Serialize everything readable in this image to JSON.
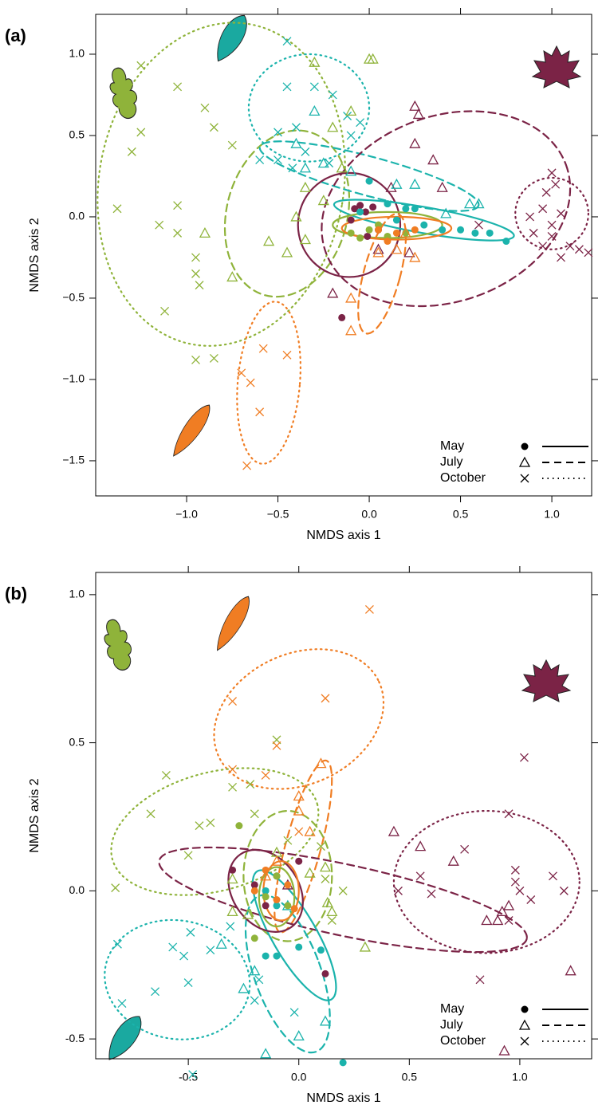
{
  "chart_data": [
    {
      "type": "scatter",
      "panel_label": "(a)",
      "xlabel": "NMDS axis 1",
      "ylabel": "NMDS axis 2",
      "xlim": [
        -1.498,
        1.218
      ],
      "ylim": [
        -1.716,
        1.245
      ],
      "xticks": [
        {
          "value": -1.0,
          "label": "−1.0"
        },
        {
          "value": -0.5,
          "label": "−0.5"
        },
        {
          "value": 0,
          "label": "0.0"
        },
        0.5,
        {
          "value": 1.0,
          "label": "1.0"
        }
      ],
      "yticks": [
        {
          "value": 1.0,
          "label": "1.0"
        },
        0.5,
        {
          "value": 0,
          "label": "0.0"
        },
        {
          "value": -0.5,
          "label": "−0.5"
        },
        {
          "value": -1.0,
          "label": "−1.0"
        },
        {
          "value": -1.5,
          "label": "−1.5"
        }
      ],
      "legend_position": "bottom-right",
      "legend": [
        {
          "label": "May",
          "marker": "circle",
          "dash": "solid"
        },
        {
          "label": "July",
          "marker": "triangle",
          "dash": "dashed"
        },
        {
          "label": "October",
          "marker": "cross",
          "dash": "dotted"
        }
      ],
      "series": [
        {
          "color": "#7b2346",
          "marker": "circle",
          "x": [
            -0.08,
            -0.05,
            -0.02,
            0.02,
            -0.1,
            0.05,
            -0.01,
            -0.15
          ],
          "y": [
            0.05,
            0.07,
            0.03,
            0.06,
            -0.02,
            -0.08,
            -0.12,
            -0.62
          ]
        },
        {
          "color": "#7b2346",
          "marker": "triangle",
          "x": [
            0.25,
            0.27,
            0.35,
            0.25,
            0.4,
            -0.2,
            0.22,
            0.05,
            0.12
          ],
          "y": [
            0.68,
            0.63,
            0.35,
            0.45,
            0.18,
            -0.47,
            -0.22,
            -0.2,
            0.18
          ]
        },
        {
          "color": "#7b2346",
          "marker": "cross",
          "x": [
            1.0,
            1.02,
            0.97,
            0.95,
            1.05,
            0.88,
            0.9,
            1.0,
            1.1,
            1.15,
            1.2,
            1.05,
            0.95,
            1.0,
            0.6
          ],
          "y": [
            0.27,
            0.2,
            0.15,
            0.05,
            0.02,
            0.0,
            -0.1,
            -0.12,
            -0.18,
            -0.2,
            -0.22,
            -0.25,
            -0.18,
            -0.05,
            -0.05
          ]
        },
        {
          "color": "#1bb3ac",
          "marker": "circle",
          "x": [
            0.0,
            0.1,
            0.2,
            0.3,
            0.4,
            0.5,
            0.58,
            0.66,
            0.75,
            0.25,
            -0.05,
            0.15
          ],
          "y": [
            0.22,
            0.08,
            0.05,
            -0.05,
            -0.08,
            -0.08,
            -0.1,
            -0.1,
            -0.15,
            0.05,
            0.03,
            -0.02
          ]
        },
        {
          "color": "#1bb3ac",
          "marker": "triangle",
          "x": [
            -0.4,
            -0.25,
            -0.35,
            -0.1,
            0.15,
            0.25,
            0.55,
            0.6,
            -0.3,
            0.42
          ],
          "y": [
            0.45,
            0.33,
            0.3,
            0.28,
            0.2,
            0.2,
            0.08,
            0.08,
            0.65,
            0.02
          ]
        },
        {
          "color": "#1bb3ac",
          "marker": "cross",
          "x": [
            -0.45,
            -0.45,
            -0.3,
            -0.2,
            -0.12,
            -0.4,
            -0.5,
            -0.35,
            -0.6,
            -0.5,
            -0.42,
            -0.1,
            -0.05,
            -0.22
          ],
          "y": [
            1.08,
            0.8,
            0.8,
            0.75,
            0.62,
            0.55,
            0.52,
            0.4,
            0.35,
            0.35,
            0.3,
            0.5,
            0.58,
            0.33
          ]
        },
        {
          "color": "#8fb33a",
          "marker": "circle",
          "x": [
            -0.1,
            0.0,
            0.1,
            0.2,
            0.05,
            -0.05
          ],
          "y": [
            -0.1,
            -0.08,
            -0.12,
            -0.1,
            -0.05,
            -0.13
          ]
        },
        {
          "color": "#8fb33a",
          "marker": "triangle",
          "x": [
            -0.3,
            0.0,
            0.02,
            -0.1,
            -0.2,
            -0.9,
            -0.75,
            -0.55,
            -0.45,
            -0.35,
            -0.4,
            -0.25,
            -0.15,
            -0.35
          ],
          "y": [
            0.95,
            0.97,
            0.97,
            0.65,
            0.55,
            -0.1,
            -0.37,
            -0.15,
            -0.22,
            -0.14,
            0.0,
            0.1,
            0.3,
            0.18
          ]
        },
        {
          "color": "#8fb33a",
          "marker": "cross",
          "x": [
            -1.25,
            -1.05,
            -1.25,
            -1.3,
            -0.9,
            -0.85,
            -0.75,
            -1.38,
            -1.15,
            -1.05,
            -0.95,
            -0.95,
            -0.93,
            -1.12,
            -0.95,
            -0.85,
            -1.05
          ],
          "y": [
            0.93,
            0.8,
            0.52,
            0.4,
            0.67,
            0.55,
            0.44,
            0.05,
            -0.05,
            0.07,
            -0.25,
            -0.35,
            -0.42,
            -0.58,
            -0.88,
            -0.87,
            -0.1
          ]
        },
        {
          "color": "#f07d23",
          "marker": "circle",
          "x": [
            0.05,
            0.15,
            0.25,
            0.1
          ],
          "y": [
            -0.08,
            -0.1,
            -0.08,
            -0.15
          ]
        },
        {
          "color": "#f07d23",
          "marker": "triangle",
          "x": [
            -0.1,
            -0.1,
            0.05,
            0.15,
            0.25,
            0.2
          ],
          "y": [
            -0.5,
            -0.7,
            -0.22,
            -0.2,
            -0.25,
            -0.1
          ]
        },
        {
          "color": "#f07d23",
          "marker": "cross",
          "x": [
            -0.7,
            -0.65,
            -0.58,
            -0.45,
            -0.6,
            -0.67
          ],
          "y": [
            -0.96,
            -1.02,
            -0.81,
            -0.85,
            -1.2,
            -1.53
          ]
        }
      ],
      "ellipses": [
        {
          "color": "#8fb33a",
          "dash": "dotted",
          "center": [
            -0.81,
            0.2
          ],
          "radii": [
            0.67,
            1.0
          ],
          "angle": 10
        },
        {
          "color": "#1bb3ac",
          "dash": "dotted",
          "center": [
            -0.33,
            0.67
          ],
          "radii": [
            0.33,
            0.33
          ],
          "angle": 0
        },
        {
          "color": "#8fb33a",
          "dash": "dashed",
          "center": [
            -0.45,
            0.02
          ],
          "radii": [
            0.33,
            0.52
          ],
          "angle": 15
        },
        {
          "color": "#1bb3ac",
          "dash": "dashed",
          "center": [
            0.0,
            0.25
          ],
          "radii": [
            0.62,
            0.12
          ],
          "angle": 15
        },
        {
          "color": "#7b2346",
          "dash": "dashed",
          "center": [
            0.42,
            0.05
          ],
          "radii": [
            0.7,
            0.57
          ],
          "angle": -20
        },
        {
          "color": "#7b2346",
          "dash": "dotted",
          "center": [
            1.0,
            0.02
          ],
          "radii": [
            0.2,
            0.22
          ],
          "angle": 0
        },
        {
          "color": "#7b2346",
          "dash": "solid",
          "center": [
            -0.11,
            -0.05
          ],
          "radii": [
            0.28,
            0.32
          ],
          "angle": 0
        },
        {
          "color": "#1bb3ac",
          "dash": "solid",
          "center": [
            0.3,
            -0.02
          ],
          "radii": [
            0.5,
            0.08
          ],
          "angle": 10
        },
        {
          "color": "#8fb33a",
          "dash": "solid",
          "center": [
            0.1,
            -0.05
          ],
          "radii": [
            0.3,
            0.08
          ],
          "angle": 0
        },
        {
          "color": "#f07d23",
          "dash": "solid",
          "center": [
            0.15,
            -0.07
          ],
          "radii": [
            0.3,
            0.07
          ],
          "angle": 0
        },
        {
          "color": "#f07d23",
          "dash": "dashed",
          "center": [
            0.07,
            -0.35
          ],
          "radii": [
            0.1,
            0.38
          ],
          "angle": 15
        },
        {
          "color": "#f07d23",
          "dash": "dotted",
          "center": [
            -0.55,
            -1.02
          ],
          "radii": [
            0.17,
            0.5
          ],
          "angle": 5
        }
      ]
    },
    {
      "type": "scatter",
      "panel_label": "(b)",
      "xlabel": "NMDS axis 1",
      "ylabel": "NMDS axis 2",
      "xlim": [
        -0.919,
        1.325
      ],
      "ylim": [
        -0.567,
        1.075
      ],
      "xticks": [
        -0.5,
        {
          "value": 0,
          "label": "0.0"
        },
        0.5,
        {
          "value": 1.0,
          "label": "1.0"
        }
      ],
      "yticks": [
        {
          "value": 1.0,
          "label": "1.0"
        },
        0.5,
        {
          "value": 0,
          "label": "0.0"
        },
        -0.5
      ],
      "legend_position": "bottom-right",
      "legend": [
        {
          "label": "May",
          "marker": "circle",
          "dash": "solid"
        },
        {
          "label": "July",
          "marker": "triangle",
          "dash": "dashed"
        },
        {
          "label": "October",
          "marker": "cross",
          "dash": "dotted"
        }
      ],
      "series": [
        {
          "color": "#7b2346",
          "marker": "circle",
          "x": [
            -0.3,
            -0.2,
            -0.1,
            -0.15,
            0.12,
            0.0
          ],
          "y": [
            0.07,
            0.02,
            0.05,
            -0.05,
            -0.28,
            0.1
          ]
        },
        {
          "color": "#7b2346",
          "marker": "triangle",
          "x": [
            0.43,
            0.55,
            0.7,
            0.9,
            0.95,
            1.23,
            0.85,
            0.92,
            -0.05,
            0.93
          ],
          "y": [
            0.2,
            0.15,
            0.1,
            -0.1,
            -0.05,
            -0.27,
            -0.1,
            -0.07,
            0.02,
            -0.54
          ]
        },
        {
          "color": "#7b2346",
          "marker": "cross",
          "x": [
            1.02,
            0.95,
            0.75,
            0.55,
            0.45,
            0.6,
            0.98,
            0.98,
            1.0,
            1.05,
            1.15,
            1.2,
            0.82,
            0.95
          ],
          "y": [
            0.45,
            0.26,
            0.14,
            0.05,
            0.0,
            -0.01,
            0.07,
            0.03,
            0.0,
            -0.03,
            0.05,
            0.0,
            -0.3,
            -0.1
          ]
        },
        {
          "color": "#1bb3ac",
          "marker": "circle",
          "x": [
            -0.15,
            -0.1,
            0.0,
            0.1,
            0.2,
            -0.1,
            -0.15
          ],
          "y": [
            -0.22,
            -0.22,
            -0.19,
            -0.2,
            -0.58,
            -0.05,
            0.0
          ]
        },
        {
          "color": "#1bb3ac",
          "marker": "triangle",
          "x": [
            -0.35,
            -0.25,
            -0.2,
            -0.15,
            0.0,
            0.12,
            -0.05
          ],
          "y": [
            -0.18,
            -0.33,
            -0.27,
            -0.55,
            -0.49,
            -0.44,
            -0.05
          ]
        },
        {
          "color": "#1bb3ac",
          "marker": "cross",
          "x": [
            -0.82,
            -0.8,
            -0.65,
            -0.5,
            -0.48,
            -0.57,
            -0.52,
            -0.2,
            -0.18,
            -0.02,
            -0.4,
            -0.49,
            -0.31
          ],
          "y": [
            -0.18,
            -0.38,
            -0.34,
            -0.31,
            -0.62,
            -0.19,
            -0.22,
            -0.37,
            -0.3,
            -0.41,
            -0.2,
            -0.14,
            -0.12
          ]
        },
        {
          "color": "#8fb33a",
          "marker": "circle",
          "x": [
            -0.27,
            -0.2,
            -0.1,
            -0.15,
            -0.05
          ],
          "y": [
            0.22,
            -0.16,
            0.05,
            -0.02,
            -0.05
          ]
        },
        {
          "color": "#8fb33a",
          "marker": "triangle",
          "x": [
            0.3,
            0.15,
            0.12,
            0.05,
            -0.1,
            -0.3,
            -0.23,
            -0.3,
            0.13
          ],
          "y": [
            -0.19,
            -0.07,
            0.08,
            0.06,
            0.13,
            0.04,
            -0.08,
            -0.07,
            -0.04
          ]
        },
        {
          "color": "#8fb33a",
          "marker": "cross",
          "x": [
            -0.83,
            -0.67,
            -0.6,
            -0.5,
            -0.45,
            -0.4,
            -0.3,
            -0.22,
            -0.1,
            -0.2,
            0.12,
            0.15,
            0.2,
            0.1,
            -0.05
          ],
          "y": [
            0.01,
            0.26,
            0.39,
            0.12,
            0.22,
            0.23,
            0.35,
            0.36,
            0.51,
            0.26,
            0.04,
            -0.1,
            0.0,
            0.15,
            0.17
          ]
        },
        {
          "color": "#f07d23",
          "marker": "circle",
          "x": [
            -0.15,
            -0.05,
            -0.1,
            -0.02,
            -0.2
          ],
          "y": [
            0.07,
            0.02,
            -0.03,
            -0.06,
            0.0
          ]
        },
        {
          "color": "#f07d23",
          "marker": "triangle",
          "x": [
            0.1,
            0.0,
            0.0,
            0.05,
            -0.1,
            -0.15
          ],
          "y": [
            0.43,
            0.32,
            0.27,
            0.2,
            0.1,
            0.05
          ]
        },
        {
          "color": "#f07d23",
          "marker": "cross",
          "x": [
            0.32,
            -0.3,
            0.12,
            -0.1,
            -0.3,
            -0.15,
            0.0
          ],
          "y": [
            0.95,
            0.64,
            0.65,
            0.49,
            0.41,
            0.39,
            0.2
          ]
        }
      ],
      "ellipses": [
        {
          "color": "#f07d23",
          "dash": "dotted",
          "center": [
            0.0,
            0.58
          ],
          "radii": [
            0.4,
            0.22
          ],
          "angle": -25
        },
        {
          "color": "#8fb33a",
          "dash": "dotted",
          "center": [
            -0.38,
            0.2
          ],
          "radii": [
            0.48,
            0.2
          ],
          "angle": -15
        },
        {
          "color": "#f07d23",
          "dash": "dashed",
          "center": [
            0.02,
            0.15
          ],
          "radii": [
            0.08,
            0.3
          ],
          "angle": 15
        },
        {
          "color": "#7b2346",
          "dash": "dashed",
          "center": [
            0.2,
            -0.03
          ],
          "radii": [
            0.85,
            0.12
          ],
          "angle": 12
        },
        {
          "color": "#7b2346",
          "dash": "dotted",
          "center": [
            0.85,
            0.03
          ],
          "radii": [
            0.42,
            0.24
          ],
          "angle": 0
        },
        {
          "color": "#8fb33a",
          "dash": "dashed",
          "center": [
            -0.05,
            0.05
          ],
          "radii": [
            0.2,
            0.22
          ],
          "angle": 0
        },
        {
          "color": "#1bb3ac",
          "dash": "dotted",
          "center": [
            -0.55,
            -0.3
          ],
          "radii": [
            0.33,
            0.2
          ],
          "angle": 10
        },
        {
          "color": "#1bb3ac",
          "dash": "dashed",
          "center": [
            -0.05,
            -0.28
          ],
          "radii": [
            0.15,
            0.28
          ],
          "angle": -20
        },
        {
          "color": "#1bb3ac",
          "dash": "solid",
          "center": [
            -0.02,
            -0.15
          ],
          "radii": [
            0.1,
            0.25
          ],
          "angle": -30
        },
        {
          "color": "#7b2346",
          "dash": "solid",
          "center": [
            -0.15,
            0.0
          ],
          "radii": [
            0.15,
            0.15
          ],
          "angle": -35
        },
        {
          "color": "#8fb33a",
          "dash": "solid",
          "center": [
            -0.1,
            -0.02
          ],
          "radii": [
            0.08,
            0.1
          ],
          "angle": 0
        },
        {
          "color": "#f07d23",
          "dash": "solid",
          "center": [
            -0.08,
            0.0
          ],
          "radii": [
            0.08,
            0.1
          ],
          "angle": 0
        }
      ]
    }
  ]
}
